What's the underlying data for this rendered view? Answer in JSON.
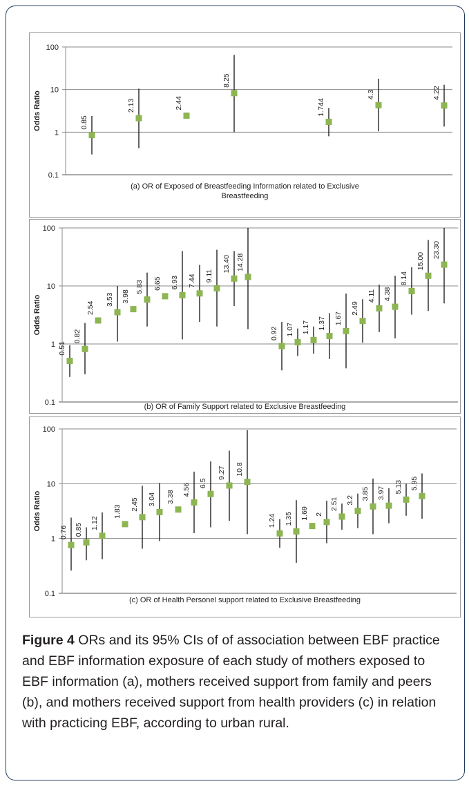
{
  "chart_data": [
    {
      "type": "scatter",
      "scale": "log",
      "ylabel": "Odds Ratio",
      "ytick_labels": [
        "100",
        "10",
        "1",
        "0.1"
      ],
      "ylim": [
        0.1,
        100
      ],
      "caption": "(a) OR of Exposed of Breastfeeding Information related to Exclusive Breastfeeding",
      "color": "#8db552",
      "points": [
        {
          "label": "0.85",
          "or": 0.85,
          "lo": 0.3,
          "hi": 2.4
        },
        {
          "label": "2.13",
          "or": 2.13,
          "lo": 0.42,
          "hi": 10.5
        },
        {
          "label": "2.44",
          "or": 2.44,
          "lo": null,
          "hi": null
        },
        {
          "label": "8.25",
          "or": 8.25,
          "lo": 1.0,
          "hi": 65
        },
        {
          "label": "1.744",
          "or": 1.744,
          "lo": 0.8,
          "hi": 3.7
        },
        {
          "label": "4.3",
          "or": 4.3,
          "lo": 1.05,
          "hi": 18
        },
        {
          "label": "4.22",
          "or": 4.22,
          "lo": 1.35,
          "hi": 13
        }
      ]
    },
    {
      "type": "scatter",
      "scale": "log",
      "ylabel": "Odds Ratio",
      "ytick_labels": [
        "100",
        "10",
        "1",
        "0.1"
      ],
      "ylim": [
        0.1,
        100
      ],
      "caption": "(b) OR of Family Support related to Exclusive Breastfeeding",
      "color": "#8db552",
      "points": [
        {
          "label": "0.51",
          "or": 0.51,
          "lo": 0.27,
          "hi": 0.95
        },
        {
          "label": "0.82",
          "or": 0.82,
          "lo": 0.3,
          "hi": 2.3
        },
        {
          "label": "2.54",
          "or": 2.54,
          "lo": null,
          "hi": null
        },
        {
          "label": "3.53",
          "or": 3.53,
          "lo": 1.1,
          "hi": 10
        },
        {
          "label": "3.98",
          "or": 3.98,
          "lo": null,
          "hi": null
        },
        {
          "label": "5.83",
          "or": 5.83,
          "lo": 2.0,
          "hi": 17
        },
        {
          "label": "6.65",
          "or": 6.65,
          "lo": null,
          "hi": null
        },
        {
          "label": "6.93",
          "or": 6.93,
          "lo": 1.2,
          "hi": 40
        },
        {
          "label": "7.44",
          "or": 7.44,
          "lo": 2.4,
          "hi": 23
        },
        {
          "label": "9.11",
          "or": 9.11,
          "lo": 2.0,
          "hi": 42
        },
        {
          "label": "13.40",
          "or": 13.4,
          "lo": 4.5,
          "hi": 40
        },
        {
          "label": "14.28",
          "or": 14.28,
          "lo": 1.8,
          "hi": 100
        },
        {
          "label": "0.92",
          "or": 0.92,
          "lo": 0.35,
          "hi": 2.4
        },
        {
          "label": "1.07",
          "or": 1.07,
          "lo": 0.62,
          "hi": 1.85
        },
        {
          "label": "1.17",
          "or": 1.17,
          "lo": 0.68,
          "hi": 2.0
        },
        {
          "label": "1.37",
          "or": 1.37,
          "lo": 0.55,
          "hi": 3.4
        },
        {
          "label": "1.67",
          "or": 1.67,
          "lo": 0.38,
          "hi": 7.4
        },
        {
          "label": "2.49",
          "or": 2.49,
          "lo": 1.05,
          "hi": 5.9
        },
        {
          "label": "4.11",
          "or": 4.11,
          "lo": 1.6,
          "hi": 10.5
        },
        {
          "label": "4.38",
          "or": 4.38,
          "lo": 1.25,
          "hi": 15
        },
        {
          "label": "8.14",
          "or": 8.14,
          "lo": 3.2,
          "hi": 21
        },
        {
          "label": "15.00",
          "or": 15.0,
          "lo": 3.7,
          "hi": 62
        },
        {
          "label": "23.30",
          "or": 23.3,
          "lo": 5.0,
          "hi": 100
        }
      ]
    },
    {
      "type": "scatter",
      "scale": "log",
      "ylabel": "Odds Ratio",
      "ytick_labels": [
        "100",
        "10",
        "1",
        "0.1"
      ],
      "ylim": [
        0.1,
        100
      ],
      "caption": "(c) OR of Health Personel support related to Exclusive Breastfeeding",
      "color": "#8db552",
      "points": [
        {
          "label": "0.76",
          "or": 0.76,
          "lo": 0.26,
          "hi": 2.4
        },
        {
          "label": "0.85",
          "or": 0.85,
          "lo": 0.4,
          "hi": 1.6
        },
        {
          "label": "1.12",
          "or": 1.12,
          "lo": 0.42,
          "hi": 3.0
        },
        {
          "label": "1.83",
          "or": 1.83,
          "lo": null,
          "hi": null
        },
        {
          "label": "2.45",
          "or": 2.45,
          "lo": 0.65,
          "hi": 9.2
        },
        {
          "label": "3.04",
          "or": 3.04,
          "lo": 0.9,
          "hi": 10.3
        },
        {
          "label": "3.38",
          "or": 3.38,
          "lo": null,
          "hi": null
        },
        {
          "label": "4.56",
          "or": 4.56,
          "lo": 1.25,
          "hi": 16.6
        },
        {
          "label": "6.5",
          "or": 6.5,
          "lo": 1.6,
          "hi": 25.5
        },
        {
          "label": "9.27",
          "or": 9.27,
          "lo": 2.1,
          "hi": 40
        },
        {
          "label": "10.8",
          "or": 10.8,
          "lo": 1.2,
          "hi": 95
        },
        {
          "label": "1.24",
          "or": 1.24,
          "lo": 0.68,
          "hi": 2.27
        },
        {
          "label": "1.35",
          "or": 1.35,
          "lo": 0.36,
          "hi": 5.0
        },
        {
          "label": "1.69",
          "or": 1.69,
          "lo": null,
          "hi": null
        },
        {
          "label": "2",
          "or": 2.0,
          "lo": 0.82,
          "hi": 4.9
        },
        {
          "label": "2.51",
          "or": 2.51,
          "lo": 1.45,
          "hi": 4.35
        },
        {
          "label": "3.2",
          "or": 3.2,
          "lo": 1.55,
          "hi": 6.6
        },
        {
          "label": "3.85",
          "or": 3.85,
          "lo": 1.2,
          "hi": 12.4
        },
        {
          "label": "3.97",
          "or": 3.97,
          "lo": 1.9,
          "hi": 8.3
        },
        {
          "label": "5.13",
          "or": 5.13,
          "lo": 2.6,
          "hi": 10.1
        },
        {
          "label": "5.95",
          "or": 5.95,
          "lo": 2.3,
          "hi": 15.4
        }
      ]
    }
  ],
  "caption": {
    "label": "Figure 4",
    "text": " ORs and its 95% CIs of of association between EBF practice and EBF information exposure of each study of mothers exposed to EBF information (a), mothers received support from family and peers (b), and mothers received support from health providers (c) in relation with practicing EBF, according to urban rural."
  }
}
